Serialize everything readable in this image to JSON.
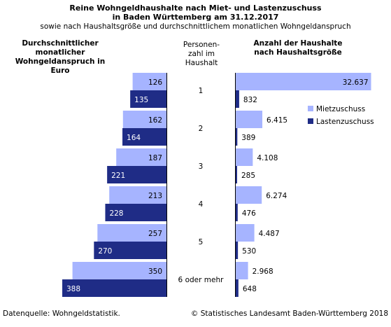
{
  "title": {
    "line1": "Reine Wohngeldhaushalte nach Miet- und Lastenzuschuss",
    "line2": "in Baden Württemberg am 31.12.2017",
    "subtitle": "sowie nach Haushaltsgröße und durchschnittlichem monatlichen Wohngeldanspruch"
  },
  "left_header": [
    "Durchschnittlicher",
    "monatlicher Wohngeldanspruch in",
    "Euro"
  ],
  "middle_header": [
    "Personen-",
    "zahl im",
    "Haushalt"
  ],
  "right_header": [
    "Anzahl der Haushalte",
    "nach Haushaltsgröße"
  ],
  "legend": [
    {
      "label": "Mietzuschuss",
      "color": "#a6b4ff"
    },
    {
      "label": "Lastenzuschuss",
      "color": "#1f2c86"
    }
  ],
  "footer": {
    "source": "Datenquelle: Wohngeldstatistik.",
    "copyright": "© Statistisches Landesamt Baden-Württemberg 2018"
  },
  "chart_data": {
    "type": "bar",
    "categories": [
      "1",
      "2",
      "3",
      "4",
      "5",
      "6 oder mehr"
    ],
    "left_panel": {
      "series": [
        {
          "name": "Mietzuschuss",
          "values": [
            126,
            162,
            187,
            213,
            257,
            350
          ],
          "color": "#a6b4ff"
        },
        {
          "name": "Lastenzuschuss",
          "values": [
            135,
            164,
            221,
            228,
            270,
            388
          ],
          "color": "#1f2c86"
        }
      ],
      "labels": {
        "Mietzuschuss": [
          "126",
          "162",
          "187",
          "213",
          "257",
          "350"
        ],
        "Lastenzuschuss": [
          "135",
          "164",
          "221",
          "228",
          "270",
          "388"
        ]
      }
    },
    "right_panel": {
      "series": [
        {
          "name": "Mietzuschuss",
          "values": [
            32637,
            6415,
            4108,
            6274,
            4487,
            2968
          ],
          "color": "#a6b4ff"
        },
        {
          "name": "Lastenzuschuss",
          "values": [
            832,
            389,
            285,
            476,
            530,
            648
          ],
          "color": "#1f2c86"
        }
      ],
      "labels": {
        "Mietzuschuss": [
          "32.637",
          "6.415",
          "4.108",
          "6.274",
          "4.487",
          "2.968"
        ],
        "Lastenzuschuss": [
          "832",
          "389",
          "285",
          "476",
          "530",
          "648"
        ]
      }
    },
    "grid": false
  }
}
